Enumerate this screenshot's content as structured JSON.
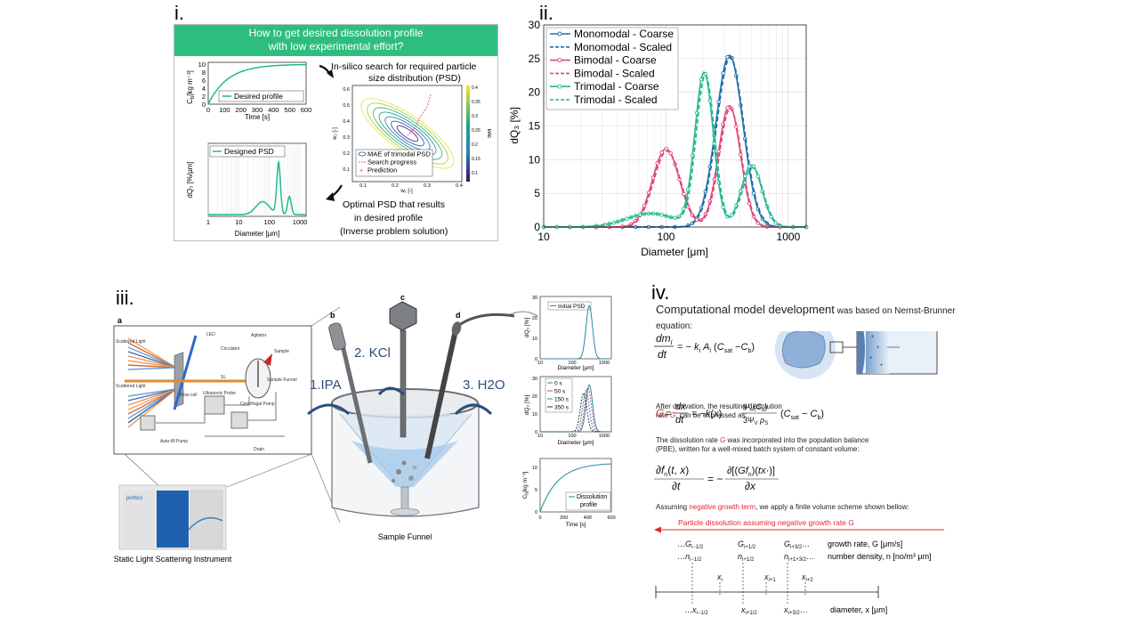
{
  "panel_labels": {
    "i": "i.",
    "ii": "ii.",
    "iii": "iii.",
    "iv": "iv."
  },
  "panel_i": {
    "banner": {
      "line1": "How to get desired dissolution  profile",
      "line2": "with low experimental effort?",
      "color": "#2dbe7e"
    },
    "top_plot": {
      "ylabel": "C",
      "ylabel_sub": "b",
      "ylabel_unit": "[kg m⁻³]",
      "xlabel": "Time [s]",
      "xticks": [
        "0",
        "100",
        "200",
        "300",
        "400",
        "500",
        "600"
      ],
      "yticks": [
        "0",
        "2",
        "4",
        "6",
        "8",
        "10"
      ],
      "legend": "Desired profile"
    },
    "search_text": {
      "line1": "In-silico search for required particle",
      "line2": "size distribution (PSD)"
    },
    "contour_plot": {
      "xlabel": "w₁ [-]",
      "ylabel": "w₂ [-]",
      "xticks": [
        "0.1",
        "0.2",
        "0.3",
        "0.4"
      ],
      "yticks": [
        "0.1",
        "0.2",
        "0.3",
        "0.4",
        "0.5",
        "0.6"
      ],
      "colorbar_label": "MAE",
      "colorbar_ticks": [
        "0.4",
        "0.35",
        "0.3",
        "0.25",
        "0.2",
        "0.15",
        "0.1"
      ],
      "legend": [
        "MAE of trimodal PSD",
        "Search progress",
        "Prediction"
      ]
    },
    "psd_plot": {
      "ylabel": "dQ₃ [%/μm]",
      "xlabel": "Diameter [μm]",
      "xticks": [
        "1",
        "10",
        "100",
        "1000"
      ],
      "legend": "Designed PSD"
    },
    "optimal_text": {
      "line1": "Optimal PSD that results",
      "line2": "in desired profile",
      "line3": "(Inverse problem solution)"
    }
  },
  "chart_data": [
    {
      "type": "line",
      "panel": "ii",
      "xlabel": "Diameter [μm]",
      "ylabel": "dQ₃ [%]",
      "xscale": "log",
      "xlim": [
        10,
        1400
      ],
      "ylim": [
        0,
        30
      ],
      "xticks": [
        "10",
        "100",
        "1000"
      ],
      "yticks": [
        "0",
        "5",
        "10",
        "15",
        "20",
        "25",
        "30"
      ],
      "grid": true,
      "legend_position": "top-left",
      "series": [
        {
          "name": "Monomodal - Coarse",
          "color": "#1f6fa8",
          "dash": false,
          "marker": "circle",
          "peaks": [
            {
              "mu": 330,
              "sigma": 0.11,
              "amp": 25.5
            }
          ]
        },
        {
          "name": "Monomodal - Scaled",
          "color": "#1f6fa8",
          "dash": true,
          "marker": "none",
          "peaks": [
            {
              "mu": 335,
              "sigma": 0.11,
              "amp": 25.2
            }
          ]
        },
        {
          "name": "Bimodal - Coarse",
          "color": "#e0457b",
          "dash": false,
          "marker": "circle",
          "peaks": [
            {
              "mu": 100,
              "sigma": 0.11,
              "amp": 11.6
            },
            {
              "mu": 330,
              "sigma": 0.09,
              "amp": 18
            }
          ]
        },
        {
          "name": "Bimodal - Scaled",
          "color": "#e0457b",
          "dash": true,
          "marker": "none",
          "peaks": [
            {
              "mu": 102,
              "sigma": 0.11,
              "amp": 11.3
            },
            {
              "mu": 335,
              "sigma": 0.09,
              "amp": 17.6
            }
          ]
        },
        {
          "name": "Trimodal - Coarse",
          "color": "#22b892",
          "dash": false,
          "marker": "circle",
          "peaks": [
            {
              "mu": 75,
              "sigma": 0.2,
              "amp": 2
            },
            {
              "mu": 205,
              "sigma": 0.075,
              "amp": 22.8
            },
            {
              "mu": 500,
              "sigma": 0.085,
              "amp": 9.2
            }
          ]
        },
        {
          "name": "Trimodal - Scaled",
          "color": "#22b892",
          "dash": true,
          "marker": "none",
          "peaks": [
            {
              "mu": 75,
              "sigma": 0.2,
              "amp": 2
            },
            {
              "mu": 210,
              "sigma": 0.075,
              "amp": 22.4
            },
            {
              "mu": 510,
              "sigma": 0.085,
              "amp": 8.8
            }
          ]
        }
      ]
    }
  ],
  "panel_iii": {
    "a": "a",
    "b": "b",
    "c": "c",
    "d": "d",
    "instrument_labels": [
      "LED",
      "Circulator",
      "Agitator",
      "Sample",
      "Scattered Light",
      "SL",
      "Scattered Light",
      "Flow cell",
      "Ultrasonic Probe",
      "Centrifugal Pump",
      "Sample Funnel",
      "Auto-fill Pump",
      "Drain"
    ],
    "instrument_caption": "Static Light Scattering Instrument",
    "instrument_brand": "portico",
    "steps": [
      "1.IPA",
      "2. KCl",
      "3. H2O"
    ],
    "funnel_caption": "Sample Funnel",
    "mini1": {
      "ylabel": "dQ₃ [%]",
      "xlabel": "Diameter [μm]",
      "legend": "Initial PSD",
      "yticks": [
        "0",
        "10",
        "20",
        "30"
      ],
      "xticks": [
        "10",
        "100",
        "1000"
      ]
    },
    "mini2": {
      "ylabel": "dQ₃ [%]",
      "xlabel": "Diameter [μm]",
      "legend": [
        "0 s",
        "50 s",
        "150 s",
        "350 s"
      ],
      "yticks": [
        "0",
        "10",
        "20",
        "30"
      ],
      "xticks": [
        "10",
        "100",
        "1000"
      ]
    },
    "mini3": {
      "ylabel": "C",
      "ylabel_sub": "b",
      "ylabel_unit": "[kg m⁻³]",
      "xlabel": "Time [s]",
      "legend_line1": "Dissolution",
      "legend_line2": "profile",
      "yticks": [
        "0",
        "5",
        "10"
      ],
      "xticks": [
        "0",
        "200",
        "400",
        "600"
      ]
    }
  },
  "panel_iv": {
    "heading_big": "Computational model development",
    "heading_small": " was based on Nernst-Brunner equation:",
    "eq1_lhs": "dm",
    "eq1_rhs": "= − k",
    "para1_line1": "After derivation, the resulting dissolution",
    "para1_line2a": "rate ",
    "para1_G": "G",
    "para1_line2b": ", can be expressed as:",
    "para2_line1a": "The dissolution rate ",
    "para2_line1b": " was incorporated into the population balance",
    "para2_line2": "(PBE), written for a well-mixed batch system of constant volume:",
    "para3a": "Assuming ",
    "para3_red": "negative growth term",
    "para3b": ", we apply a finite volume scheme shown bellow:",
    "arrow_label": "Particle dissolution assuming negative growth rate G",
    "growth_label": "growth rate, G   [μm/s]",
    "number_label": "number density, n [no/m³ μm]",
    "diameter_label": "diameter, x  [μm]",
    "red_color": "#e0282e"
  }
}
